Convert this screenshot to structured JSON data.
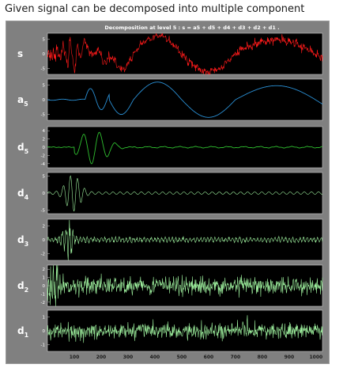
{
  "caption": "Given signal can be decomposed into multiple component",
  "colors": {
    "s": "#ff1a1a",
    "a5": "#2a8fd4",
    "d5": "#2fbf2f",
    "detail": "#9ef09e",
    "panel_bg": "#000000",
    "figure_bg": "#808080"
  },
  "chart_data": {
    "type": "line",
    "title": "Decomposition at level 5 : s = a5 + d5 + d4 + d3 + d2 + d1 .",
    "x_range": [
      0,
      1024
    ],
    "x_ticks": [
      "100",
      "200",
      "300",
      "400",
      "500",
      "600",
      "700",
      "800",
      "900",
      "1000"
    ],
    "series": [
      {
        "name": "s",
        "label_main": "s",
        "label_sub": "",
        "ylim": [
          -7,
          7
        ],
        "y_ticks": [
          "5",
          "0",
          "-5"
        ],
        "color": "#ff1a1a"
      },
      {
        "name": "a5",
        "label_main": "a",
        "label_sub": "5",
        "ylim": [
          -7,
          7
        ],
        "y_ticks": [
          "5",
          "0",
          "-5"
        ],
        "color": "#2a8fd4"
      },
      {
        "name": "d5",
        "label_main": "d",
        "label_sub": "5",
        "ylim": [
          -5,
          5
        ],
        "y_ticks": [
          "4",
          "2",
          "0",
          "-2",
          "-4"
        ],
        "color": "#2fbf2f"
      },
      {
        "name": "d4",
        "label_main": "d",
        "label_sub": "4",
        "ylim": [
          -6,
          6
        ],
        "y_ticks": [
          "5",
          "0",
          "-5"
        ],
        "color": "#9ef09e"
      },
      {
        "name": "d3",
        "label_main": "d",
        "label_sub": "3",
        "ylim": [
          -3,
          3
        ],
        "y_ticks": [
          "2",
          "0",
          "-2"
        ],
        "color": "#9ef09e"
      },
      {
        "name": "d2",
        "label_main": "d",
        "label_sub": "2",
        "ylim": [
          -2.5,
          2.5
        ],
        "y_ticks": [
          "2",
          "1",
          "0",
          "-1",
          "-2"
        ],
        "color": "#9ef09e"
      },
      {
        "name": "d1",
        "label_main": "d",
        "label_sub": "1",
        "ylim": [
          -1.5,
          1.5
        ],
        "y_ticks": [
          "1",
          "0",
          "-1"
        ],
        "color": "#9ef09e"
      }
    ]
  }
}
